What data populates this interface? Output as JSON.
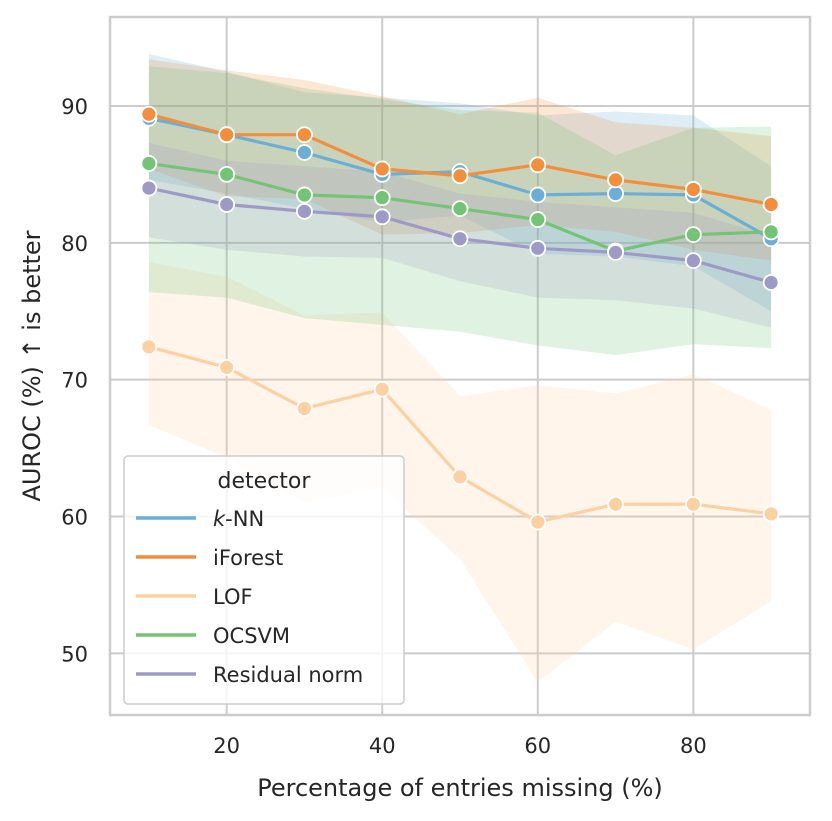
{
  "chart_data": {
    "type": "line",
    "title": "",
    "xlabel": "Percentage of entries missing (%)",
    "ylabel": "AUROC (%) ↑ is better",
    "xlim": [
      5,
      95
    ],
    "ylim": [
      45.5,
      96.5
    ],
    "x_ticks": [
      20,
      40,
      60,
      80
    ],
    "y_ticks": [
      50,
      60,
      70,
      80,
      90
    ],
    "grid": true,
    "legend_title": "detector",
    "legend_position": "lower-left",
    "x": [
      10,
      20,
      30,
      40,
      50,
      60,
      70,
      80,
      90
    ],
    "series": [
      {
        "name": "k-NN",
        "name_italic": "k",
        "name_rest": "-NN",
        "color": "#6baed6",
        "values": [
          89.1,
          87.9,
          86.6,
          85.0,
          85.2,
          83.5,
          83.6,
          83.5,
          80.3
        ],
        "lower": [
          84.6,
          83.6,
          82.5,
          81.5,
          82.0,
          79.2,
          79.0,
          78.3,
          75.0
        ],
        "upper": [
          93.8,
          92.5,
          91.0,
          90.6,
          90.2,
          89.3,
          89.6,
          89.3,
          85.6
        ]
      },
      {
        "name": "iForest",
        "color": "#f28e3c",
        "values": [
          89.4,
          87.9,
          87.9,
          85.4,
          84.9,
          85.7,
          84.6,
          83.9,
          82.8
        ],
        "lower": [
          85.4,
          83.4,
          83.2,
          80.6,
          80.7,
          81.3,
          80.8,
          79.5,
          78.7
        ],
        "upper": [
          93.4,
          92.6,
          91.9,
          90.7,
          89.4,
          90.6,
          88.8,
          88.4,
          87.8
        ]
      },
      {
        "name": "LOF",
        "color": "#fdd0a2",
        "values": [
          72.4,
          70.9,
          67.9,
          69.3,
          62.9,
          59.6,
          60.9,
          60.9,
          60.2
        ],
        "lower": [
          66.7,
          64.3,
          61.0,
          62.1,
          56.9,
          47.9,
          52.3,
          50.3,
          53.8
        ],
        "upper": [
          78.6,
          77.5,
          74.7,
          74.9,
          68.8,
          69.6,
          69.0,
          70.4,
          67.8
        ]
      },
      {
        "name": "OCSVM",
        "color": "#74c476",
        "values": [
          85.8,
          85.0,
          83.5,
          83.3,
          82.5,
          81.7,
          79.4,
          80.6,
          80.8
        ],
        "lower": [
          76.4,
          76.0,
          74.5,
          74.0,
          73.5,
          72.5,
          71.8,
          72.6,
          72.3
        ],
        "upper": [
          92.9,
          92.4,
          91.3,
          90.5,
          89.7,
          89.5,
          86.4,
          88.4,
          88.5
        ]
      },
      {
        "name": "Residual norm",
        "color": "#9e9ac8",
        "values": [
          84.0,
          82.8,
          82.3,
          81.9,
          80.3,
          79.6,
          79.3,
          78.7,
          77.1
        ],
        "lower": [
          80.4,
          79.5,
          79.0,
          78.9,
          77.2,
          76.0,
          75.8,
          75.2,
          73.8
        ],
        "upper": [
          87.3,
          86.0,
          85.6,
          85.2,
          83.6,
          83.0,
          82.6,
          82.2,
          80.5
        ]
      }
    ]
  }
}
